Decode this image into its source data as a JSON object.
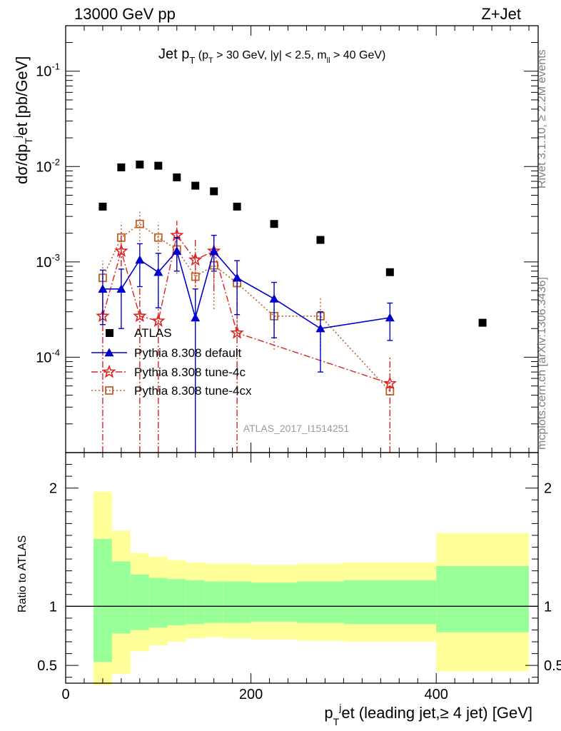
{
  "header": {
    "left": "13000 GeV pp",
    "right": "Z+Jet"
  },
  "title": {
    "main": "Jet p",
    "main_sub": "T",
    "cut1": "(p",
    "cut1_sub": "T",
    "cut2": " > 30 GeV, |y| < 2.5, m",
    "cut2_sub": "ll",
    "cut3": " > 40 GeV)"
  },
  "side_labels": {
    "rivet": "Rivet 3.1.10, ≥ 2.2M events",
    "mcplots": "mcplots.cern.ch [arXiv:1306.3436]"
  },
  "analysis_id": "ATLAS_2017_I1514251",
  "colors": {
    "data": "#000000",
    "default": "#0000cc",
    "tune4c": "#dd2222",
    "tune4cx": "#c0602a",
    "band_inner": "#99ff99",
    "band_outer": "#ffff99"
  },
  "chart_data": [
    {
      "type": "scatter",
      "ylabel": "dσ/dp",
      "ylabel_sub": "T",
      "ylabel_sup": "j",
      "ylabel_rest": "et [pb/GeV]",
      "yscale": "log",
      "ylim": [
        1e-05,
        0.3
      ],
      "xlim": [
        0,
        510
      ],
      "y_ticks": [
        {
          "base": "10",
          "exp": "-1",
          "value": 0.1
        },
        {
          "base": "10",
          "exp": "-2",
          "value": 0.01
        },
        {
          "base": "10",
          "exp": "-3",
          "value": 0.001
        },
        {
          "base": "10",
          "exp": "-4",
          "value": 0.0001
        }
      ],
      "legend": {
        "data": "ATLAS",
        "default": "Pythia 8.308 default",
        "tune4c": "Pythia 8.308 tune-4c",
        "tune4cx": "Pythia 8.308 tune-4cx"
      },
      "data": {
        "x": [
          40,
          60,
          80,
          100,
          120,
          140,
          160,
          185,
          225,
          275,
          350,
          450
        ],
        "y": [
          0.0038,
          0.0098,
          0.0105,
          0.0102,
          0.0077,
          0.0063,
          0.0055,
          0.0038,
          0.0025,
          0.0017,
          0.00078,
          0.00023
        ]
      },
      "series": [
        {
          "key": "default",
          "x": [
            40,
            60,
            80,
            100,
            120,
            140,
            160,
            185,
            225,
            275,
            350
          ],
          "y": [
            0.00052,
            0.00052,
            0.00105,
            0.00078,
            0.0013,
            0.00026,
            0.0013,
            0.00068,
            0.00041,
            0.0002,
            0.00026
          ],
          "err_lo": [
            0.0003,
            0.00032,
            0.0005,
            0.00045,
            0.0005,
            0.00026,
            0.0005,
            0.0004,
            0.00025,
            0.00013,
            0.00011
          ],
          "err_hi": [
            0.0003,
            0.00032,
            0.0005,
            0.00045,
            0.0005,
            0.00026,
            0.0006,
            0.00035,
            0.0002,
            0.0001,
            0.00011
          ]
        },
        {
          "key": "tune4c",
          "x": [
            40,
            60,
            80,
            100,
            120,
            140,
            160,
            185,
            350
          ],
          "y": [
            0.00027,
            0.0013,
            0.00027,
            0.00024,
            0.0019,
            0.00105,
            0.0013,
            0.00018,
            5.3e-05
          ],
          "err_lo": [
            0.00027,
            0.0008,
            0.00027,
            0.00024,
            0.0009,
            0.0006,
            0.0008,
            0.00018,
            5.3e-05
          ],
          "err_hi": [
            0.00025,
            0.0008,
            0.00035,
            0.0003,
            0.0008,
            0.0007,
            0.0006,
            0.0002,
            5e-05
          ]
        },
        {
          "key": "tune4cx",
          "x": [
            40,
            60,
            80,
            100,
            120,
            140,
            160,
            185,
            225,
            275,
            350
          ],
          "y": [
            0.00068,
            0.0018,
            0.0025,
            0.0018,
            0.00135,
            0.0007,
            0.00092,
            0.0006,
            0.00027,
            0.00027,
            4.4e-05
          ],
          "err_lo": [
            0.00035,
            0.0008,
            0.001,
            0.0008,
            0.0006,
            0.00045,
            0.0006,
            0.0004,
            0.00015,
            0.00015,
            0.0
          ],
          "err_hi": [
            0.00035,
            0.0008,
            0.0009,
            0.0008,
            0.0006,
            0.0004,
            0.0006,
            0.00035,
            0.00015,
            0.00015,
            0.0
          ]
        }
      ]
    },
    {
      "type": "area",
      "ylabel": "Ratio to ATLAS",
      "xlabel": "p",
      "xlabel_sub": "T",
      "xlabel_sup": "j",
      "xlabel_rest": "et (leading jet,≥ 4 jet) [GeV]",
      "ylim": [
        0.35,
        2.3
      ],
      "xlim": [
        0,
        510
      ],
      "x_ticks": [
        "0",
        "200",
        "400"
      ],
      "y_ticks": [
        "0.5",
        "1",
        "2"
      ],
      "bins": [
        {
          "lo": 30,
          "hi": 50,
          "inner": [
            0.53,
            1.57
          ],
          "outer": [
            0.33,
            1.97
          ]
        },
        {
          "lo": 50,
          "hi": 70,
          "inner": [
            0.77,
            1.38
          ],
          "outer": [
            0.43,
            1.64
          ]
        },
        {
          "lo": 70,
          "hi": 90,
          "inner": [
            0.8,
            1.27
          ],
          "outer": [
            0.62,
            1.45
          ]
        },
        {
          "lo": 90,
          "hi": 110,
          "inner": [
            0.82,
            1.24
          ],
          "outer": [
            0.67,
            1.42
          ]
        },
        {
          "lo": 110,
          "hi": 130,
          "inner": [
            0.84,
            1.23
          ],
          "outer": [
            0.7,
            1.39
          ]
        },
        {
          "lo": 130,
          "hi": 150,
          "inner": [
            0.85,
            1.22
          ],
          "outer": [
            0.73,
            1.37
          ]
        },
        {
          "lo": 150,
          "hi": 170,
          "inner": [
            0.86,
            1.21
          ],
          "outer": [
            0.74,
            1.36
          ]
        },
        {
          "lo": 170,
          "hi": 200,
          "inner": [
            0.86,
            1.21
          ],
          "outer": [
            0.73,
            1.36
          ]
        },
        {
          "lo": 200,
          "hi": 250,
          "inner": [
            0.87,
            1.2
          ],
          "outer": [
            0.72,
            1.35
          ]
        },
        {
          "lo": 250,
          "hi": 300,
          "inner": [
            0.86,
            1.21
          ],
          "outer": [
            0.71,
            1.36
          ]
        },
        {
          "lo": 300,
          "hi": 400,
          "inner": [
            0.85,
            1.22
          ],
          "outer": [
            0.7,
            1.37
          ]
        },
        {
          "lo": 400,
          "hi": 500,
          "inner": [
            0.78,
            1.34
          ],
          "outer": [
            0.45,
            1.62
          ]
        }
      ]
    }
  ]
}
